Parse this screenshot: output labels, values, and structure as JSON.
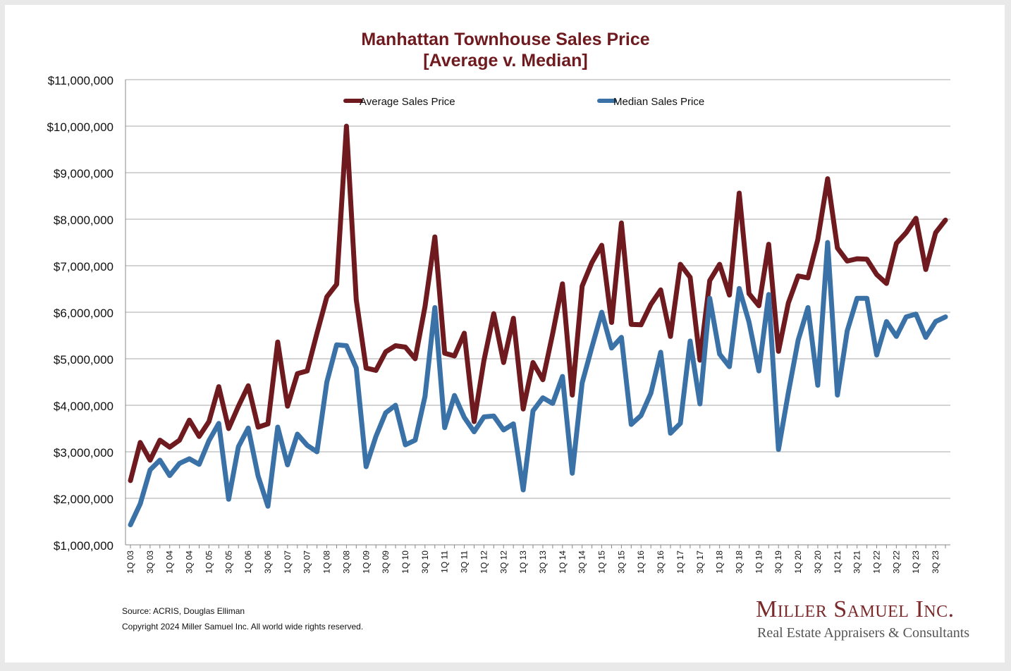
{
  "chart_data": {
    "type": "line",
    "title": "Manhattan Townhouse Sales Price",
    "subtitle": "[Average v. Median]",
    "xlabel": "",
    "ylabel": "",
    "ylim": [
      1000000,
      11000000
    ],
    "yticks": [
      "$1,000,000",
      "$2,000,000",
      "$3,000,000",
      "$4,000,000",
      "$5,000,000",
      "$6,000,000",
      "$7,000,000",
      "$8,000,000",
      "$9,000,000",
      "$10,000,000",
      "$11,000,000"
    ],
    "ytick_values": [
      1000000,
      2000000,
      3000000,
      4000000,
      5000000,
      6000000,
      7000000,
      8000000,
      9000000,
      10000000,
      11000000
    ],
    "grid": true,
    "legend": "top-center",
    "x": [
      "1Q 03",
      "2Q 03",
      "3Q 03",
      "4Q 03",
      "1Q 04",
      "2Q 04",
      "3Q 04",
      "4Q 04",
      "1Q 05",
      "2Q 05",
      "3Q 05",
      "4Q 05",
      "1Q 06",
      "2Q 06",
      "3Q 06",
      "4Q 06",
      "1Q 07",
      "2Q 07",
      "3Q 07",
      "4Q 07",
      "1Q 08",
      "2Q 08",
      "3Q 08",
      "4Q 08",
      "1Q 09",
      "2Q 09",
      "3Q 09",
      "4Q 09",
      "1Q 10",
      "2Q 10",
      "3Q 10",
      "4Q 10",
      "1Q 11",
      "2Q 11",
      "3Q 11",
      "4Q 11",
      "1Q 12",
      "2Q 12",
      "3Q 12",
      "4Q 12",
      "1Q 13",
      "2Q 13",
      "3Q 13",
      "4Q 13",
      "1Q 14",
      "2Q 14",
      "3Q 14",
      "4Q 14",
      "1Q 15",
      "2Q 15",
      "3Q 15",
      "4Q 15",
      "1Q 16",
      "2Q 16",
      "3Q 16",
      "4Q 16",
      "1Q 17",
      "2Q 17",
      "3Q 17",
      "4Q 17",
      "1Q 18",
      "2Q 18",
      "3Q 18",
      "4Q 18",
      "1Q 19",
      "2Q 19",
      "3Q 19",
      "4Q 19",
      "1Q 20",
      "2Q 20",
      "3Q 20",
      "4Q 20",
      "1Q 21",
      "2Q 21",
      "3Q 21",
      "4Q 21",
      "1Q 22",
      "2Q 22",
      "3Q 22",
      "4Q 22",
      "1Q 23",
      "2Q 23",
      "3Q 23",
      "4Q 23"
    ],
    "xticks_shown": [
      "1Q 03",
      "3Q 03",
      "1Q 04",
      "3Q 04",
      "1Q 05",
      "3Q 05",
      "1Q 06",
      "3Q 06",
      "1Q 07",
      "3Q 07",
      "1Q 08",
      "3Q 08",
      "1Q 09",
      "3Q 09",
      "1Q 10",
      "3Q 10",
      "1Q 11",
      "3Q 11",
      "1Q 12",
      "3Q 12",
      "1Q 13",
      "3Q 13",
      "1Q 14",
      "3Q 14",
      "1Q 15",
      "3Q 15",
      "1Q 16",
      "3Q 16",
      "1Q 17",
      "3Q 17",
      "1Q 18",
      "3Q 18",
      "1Q 19",
      "3Q 19",
      "1Q 20",
      "3Q 20",
      "1Q 21",
      "3Q 21",
      "1Q 22",
      "3Q 22",
      "1Q 23",
      "3Q 23"
    ],
    "series": [
      {
        "name": "Average Sales Price",
        "color": "#6e1a1e",
        "values": [
          2380000,
          3200000,
          2820000,
          3250000,
          3100000,
          3250000,
          3680000,
          3330000,
          3650000,
          4400000,
          3500000,
          3980000,
          4420000,
          3530000,
          3600000,
          5360000,
          3980000,
          4680000,
          4740000,
          5550000,
          6330000,
          6600000,
          10000000,
          6270000,
          4800000,
          4750000,
          5150000,
          5280000,
          5250000,
          5000000,
          6120000,
          7620000,
          5120000,
          5060000,
          5550000,
          3650000,
          4960000,
          5970000,
          4920000,
          5870000,
          3920000,
          4920000,
          4550000,
          5540000,
          6610000,
          4220000,
          6560000,
          7070000,
          7440000,
          5780000,
          7920000,
          5740000,
          5730000,
          6170000,
          6480000,
          5480000,
          7030000,
          6750000,
          4970000,
          6680000,
          7030000,
          6370000,
          8560000,
          6400000,
          6140000,
          7460000,
          5160000,
          6200000,
          6780000,
          6740000,
          7560000,
          8870000,
          7380000,
          7100000,
          7150000,
          7140000,
          6810000,
          6620000,
          7480000,
          7710000,
          8020000,
          6920000,
          7710000,
          7980000
        ]
      },
      {
        "name": "Median Sales Price",
        "color": "#3a72a8",
        "values": [
          1430000,
          1880000,
          2610000,
          2820000,
          2490000,
          2750000,
          2850000,
          2730000,
          3240000,
          3610000,
          1980000,
          3110000,
          3510000,
          2480000,
          1830000,
          3530000,
          2720000,
          3380000,
          3140000,
          3000000,
          4500000,
          5300000,
          5280000,
          4800000,
          2680000,
          3330000,
          3840000,
          4000000,
          3150000,
          3250000,
          4190000,
          6100000,
          3520000,
          4210000,
          3740000,
          3430000,
          3750000,
          3770000,
          3470000,
          3600000,
          2180000,
          3880000,
          4160000,
          4040000,
          4620000,
          2540000,
          4480000,
          5250000,
          6000000,
          5230000,
          5460000,
          3590000,
          3780000,
          4260000,
          5140000,
          3400000,
          3610000,
          5380000,
          4030000,
          6300000,
          5100000,
          4830000,
          6510000,
          5790000,
          4740000,
          6380000,
          3050000,
          4270000,
          5400000,
          6100000,
          4430000,
          7500000,
          4220000,
          5600000,
          6300000,
          6300000,
          5080000,
          5800000,
          5480000,
          5900000,
          5960000,
          5460000,
          5800000,
          5900000
        ]
      }
    ]
  },
  "footer": {
    "source": "Source: ACRIS, Douglas Elliman",
    "copyright": "Copyright 2024 Miller Samuel Inc.  All world wide rights reserved."
  },
  "brand": {
    "name": "Miller Samuel Inc.",
    "tagline": "Real Estate Appraisers & Consultants"
  }
}
